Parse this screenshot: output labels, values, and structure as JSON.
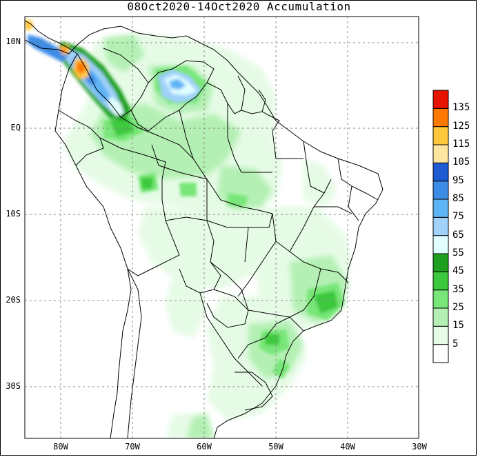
{
  "title": "08Oct2020-14Oct2020 Accumulation",
  "lat_ticks": [
    {
      "label": "10N",
      "lat": 10
    },
    {
      "label": "EQ",
      "lat": 0
    },
    {
      "label": "10S",
      "lat": -10
    },
    {
      "label": "20S",
      "lat": -20
    },
    {
      "label": "30S",
      "lat": -30
    }
  ],
  "lon_ticks": [
    {
      "label": "80W",
      "lon": -80
    },
    {
      "label": "70W",
      "lon": -70
    },
    {
      "label": "60W",
      "lon": -60
    },
    {
      "label": "50W",
      "lon": -50
    },
    {
      "label": "40W",
      "lon": -40
    },
    {
      "label": "30W",
      "lon": -30
    }
  ],
  "colorbar": [
    {
      "label": "5",
      "color": "#ffffff"
    },
    {
      "label": "15",
      "color": "#e6fbe6"
    },
    {
      "label": "25",
      "color": "#b4f0b4"
    },
    {
      "label": "35",
      "color": "#78e678"
    },
    {
      "label": "45",
      "color": "#3cc83c"
    },
    {
      "label": "55",
      "color": "#1ea01e"
    },
    {
      "label": "65",
      "color": "#e1ffff"
    },
    {
      "label": "75",
      "color": "#a0d2fa"
    },
    {
      "label": "85",
      "color": "#5fb4f5"
    },
    {
      "label": "95",
      "color": "#3c8ce6"
    },
    {
      "label": "105",
      "color": "#1e5ad2"
    },
    {
      "label": "115",
      "color": "#ffe6a0"
    },
    {
      "label": "125",
      "color": "#ffc83c"
    },
    {
      "label": "135",
      "color": "#ff7800"
    },
    {
      "label": "",
      "color": "#e61400"
    }
  ]
}
